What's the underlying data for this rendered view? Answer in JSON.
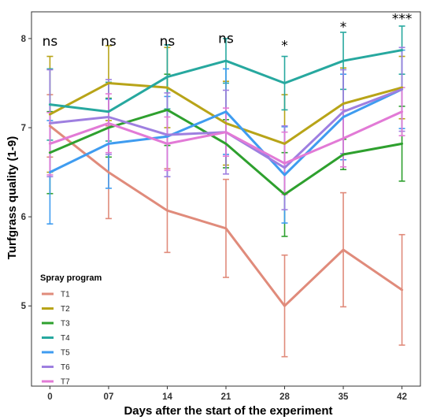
{
  "chart_data": {
    "type": "line",
    "xlabel": "Days after the start of the experiment",
    "ylabel": "Turfgrass quality (1-9)",
    "x": [
      0,
      7,
      14,
      21,
      28,
      35,
      42
    ],
    "x_tick_labels": [
      "0",
      "07",
      "14",
      "21",
      "28",
      "35",
      "42"
    ],
    "yticks": [
      5,
      6,
      7,
      8
    ],
    "xlim": [
      -2.2,
      44.2
    ],
    "ylim": [
      4.1,
      8.3
    ],
    "grid": false,
    "significance": [
      "ns",
      "ns",
      "ns",
      "ns",
      "*",
      "*",
      "***"
    ],
    "significance_y": [
      7.92,
      7.92,
      7.92,
      7.95,
      7.87,
      8.08,
      8.17
    ],
    "legend": {
      "title": "Spray program",
      "placement": "bottom-left"
    },
    "series": [
      {
        "name": "T1",
        "color": "#E08B7B",
        "values": [
          7.02,
          6.5,
          6.07,
          5.87,
          5.0,
          5.63,
          5.18
        ],
        "errors": [
          0.35,
          0.52,
          0.47,
          0.55,
          0.57,
          0.64,
          0.62
        ]
      },
      {
        "name": "T2",
        "color": "#B8A418",
        "values": [
          7.15,
          7.5,
          7.45,
          7.05,
          6.82,
          7.27,
          7.45
        ],
        "errors": [
          0.65,
          0.42,
          0.45,
          0.47,
          0.55,
          0.4,
          0.35
        ]
      },
      {
        "name": "T3",
        "color": "#2EA02E",
        "values": [
          6.72,
          7.0,
          7.2,
          6.82,
          6.25,
          6.7,
          6.82
        ],
        "errors": [
          0.46,
          0.33,
          0.4,
          0.27,
          0.47,
          0.17,
          0.42
        ]
      },
      {
        "name": "T4",
        "color": "#27A89F",
        "values": [
          7.26,
          7.18,
          7.57,
          7.75,
          7.5,
          7.75,
          7.87
        ],
        "errors": [
          0.4,
          0.33,
          0.36,
          0.25,
          0.3,
          0.32,
          0.27
        ]
      },
      {
        "name": "T5",
        "color": "#3F9CF0",
        "values": [
          6.5,
          6.82,
          6.9,
          7.18,
          6.47,
          7.12,
          7.43
        ],
        "errors": [
          0.58,
          0.5,
          0.45,
          0.48,
          0.54,
          0.48,
          0.44
        ]
      },
      {
        "name": "T6",
        "color": "#9E7FE0",
        "values": [
          7.05,
          7.12,
          6.92,
          6.95,
          6.55,
          7.18,
          7.43
        ],
        "errors": [
          0.6,
          0.42,
          0.47,
          0.47,
          0.47,
          0.47,
          0.47
        ]
      },
      {
        "name": "T7",
        "color": "#E27AD6",
        "values": [
          6.82,
          7.05,
          6.82,
          6.95,
          6.6,
          6.88,
          7.18
        ],
        "errors": [
          0.35,
          0.33,
          0.3,
          0.27,
          0.35,
          0.32,
          0.27
        ]
      }
    ]
  }
}
